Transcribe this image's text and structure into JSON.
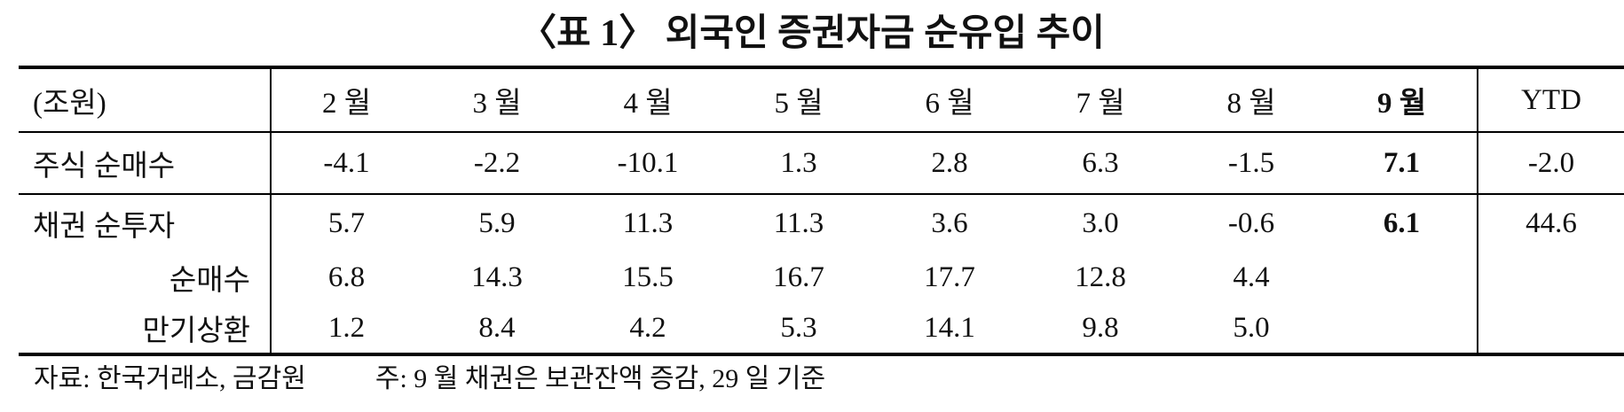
{
  "title": "〈표 1〉 외국인 증권자금 순유입 추이",
  "table": {
    "header": [
      "(조원)",
      "2 월",
      "3 월",
      "4 월",
      "5 월",
      "6 월",
      "7 월",
      "8 월",
      "9 월",
      "YTD"
    ],
    "rows": [
      [
        "주식 순매수",
        "-4.1",
        "-2.2",
        "-10.1",
        "1.3",
        "2.8",
        "6.3",
        "-1.5",
        "7.1",
        "-2.0"
      ],
      [
        "채권 순투자",
        "5.7",
        "5.9",
        "11.3",
        "11.3",
        "3.6",
        "3.0",
        "-0.6",
        "6.1",
        "44.6"
      ],
      [
        "순매수",
        "6.8",
        "14.3",
        "15.5",
        "16.7",
        "17.7",
        "12.8",
        "4.4"
      ],
      [
        "만기상환",
        "1.2",
        "8.4",
        "4.2",
        "5.3",
        "14.1",
        "9.8",
        "5.0"
      ]
    ]
  },
  "footer": {
    "source": "자료: 한국거래소, 금감원",
    "note": "주: 9 월 채권은 보관잔액 증감, 29 일 기준"
  }
}
